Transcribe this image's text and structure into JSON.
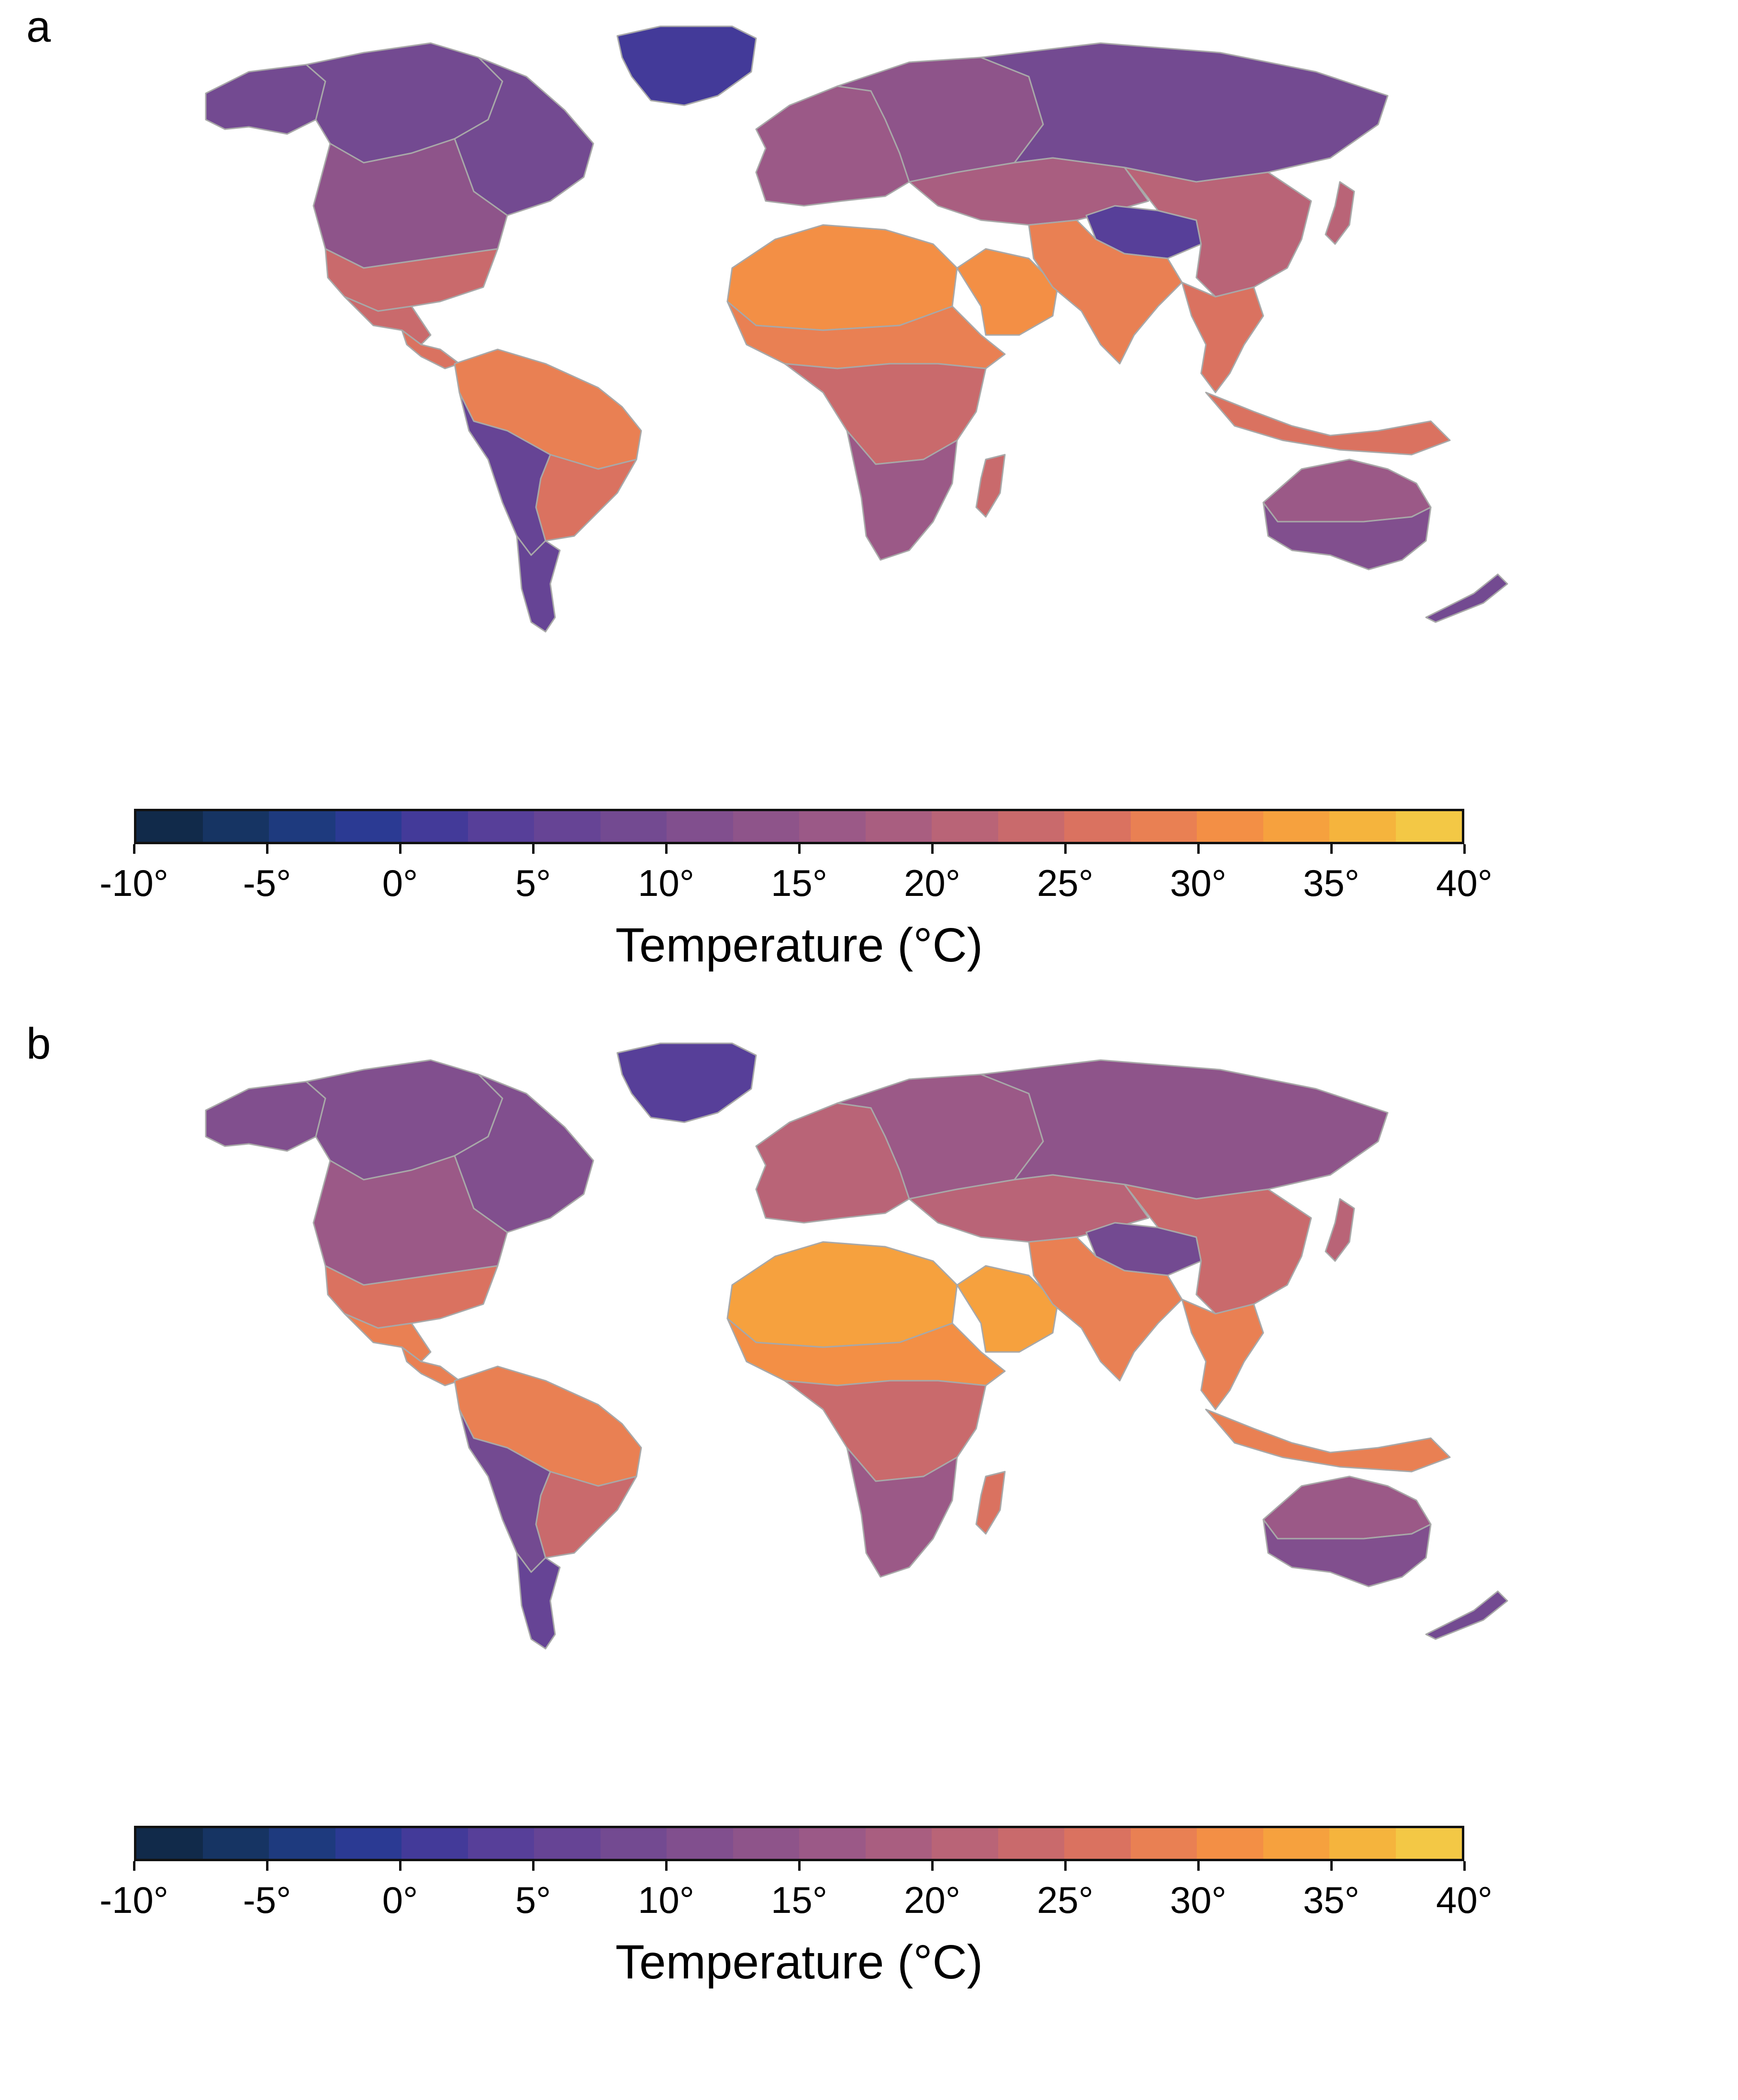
{
  "panels": [
    {
      "letter": "a",
      "chart_data": {
        "type": "heatmap",
        "map": "world land surface temperature",
        "colorbar": {
          "title": "Temperature (°C)",
          "range": [
            -10,
            40
          ],
          "tick_values": [
            -10,
            -5,
            0,
            5,
            10,
            15,
            20,
            25,
            30,
            35,
            40
          ],
          "tick_labels": [
            "-10°",
            "-5°",
            "0°",
            "5°",
            "10°",
            "15°",
            "20°",
            "25°",
            "30°",
            "35°",
            "40°"
          ],
          "levels": 20
        }
      }
    },
    {
      "letter": "b",
      "chart_data": {
        "type": "heatmap",
        "map": "world land surface temperature",
        "colorbar": {
          "title": "Temperature (°C)",
          "range": [
            -10,
            40
          ],
          "tick_values": [
            -10,
            -5,
            0,
            5,
            10,
            15,
            20,
            25,
            30,
            35,
            40
          ],
          "tick_labels": [
            "-10°",
            "-5°",
            "0°",
            "5°",
            "10°",
            "15°",
            "20°",
            "25°",
            "30°",
            "35°",
            "40°"
          ],
          "levels": 20
        }
      }
    }
  ],
  "colors": {
    "scale": [
      "#0b1e33",
      "#112a4a",
      "#163463",
      "#1e3a7e",
      "#2b3a93",
      "#433a99",
      "#573f99",
      "#664495",
      "#734a91",
      "#814f8e",
      "#8e548a",
      "#9b5987",
      "#a95e80",
      "#b96477",
      "#c96a6c",
      "#da7260",
      "#e98053",
      "#f38f45",
      "#f6a13e",
      "#f5b43d",
      "#f3c845",
      "#e8e052"
    ],
    "coastline": "#a8a8a8"
  },
  "regions": {
    "panel_a": {
      "greenland": 1,
      "north_canada": 8,
      "east_canada": 9,
      "alaska": 8,
      "usa_north": 13,
      "usa_south": 24,
      "mexico": 24,
      "central_america": 25,
      "south_america_north": 27,
      "south_america_east": 26,
      "andes": 6,
      "patagonia": 6,
      "sahara": 31,
      "sahel": 28,
      "africa_central": 23,
      "africa_south": 16,
      "madagascar": 24,
      "arabia": 31,
      "europe": 15,
      "russia_west": 14,
      "siberia": 10,
      "central_asia": 18,
      "tibet": 5,
      "china_east": 22,
      "india": 27,
      "southeast_asia": 25,
      "indonesia": 26,
      "japan": 20,
      "australia_north": 16,
      "australia_south": 11,
      "new_zealand": 8
    },
    "panel_b": {
      "greenland": 4,
      "north_canada": 12,
      "east_canada": 12,
      "alaska": 11,
      "usa_north": 17,
      "usa_south": 26,
      "mexico": 27,
      "central_america": 28,
      "south_america_north": 27,
      "south_america_east": 24,
      "andes": 9,
      "patagonia": 7,
      "sahara": 34,
      "sahel": 31,
      "africa_central": 24,
      "africa_south": 16,
      "madagascar": 25,
      "arabia": 34,
      "europe": 20,
      "russia_west": 17,
      "siberia": 14,
      "central_asia": 22,
      "tibet": 8,
      "china_east": 24,
      "india": 29,
      "southeast_asia": 27,
      "indonesia": 27,
      "japan": 22,
      "australia_north": 16,
      "australia_south": 12,
      "new_zealand": 9
    }
  }
}
